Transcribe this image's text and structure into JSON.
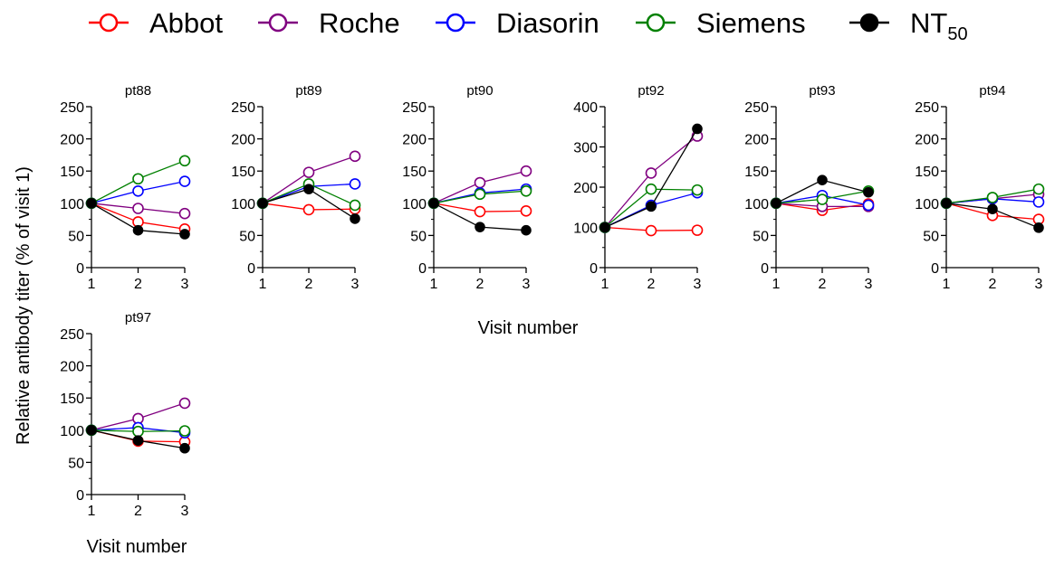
{
  "legend": [
    {
      "label": "Abbot",
      "sub": "",
      "color": "#ff0000",
      "marker": "open-circle"
    },
    {
      "label": "Roche",
      "sub": "",
      "color": "#800080",
      "marker": "open-circle"
    },
    {
      "label": "Diasorin",
      "sub": "",
      "color": "#0000ff",
      "marker": "open-circle"
    },
    {
      "label": "Siemens",
      "sub": "",
      "color": "#008000",
      "marker": "open-circle"
    },
    {
      "label": "NT",
      "sub": "50",
      "color": "#000000",
      "marker": "filled-circle"
    }
  ],
  "ylabel": "Relative antibody titer (% of visit 1)",
  "xlabel_row1": "Visit number",
  "xlabel_row2": "Visit number",
  "chart_data": [
    {
      "type": "line",
      "title": "pt88",
      "x": [
        1,
        2,
        3
      ],
      "ylim": [
        0,
        250
      ],
      "yticks": [
        0,
        50,
        100,
        150,
        200,
        250
      ],
      "series": [
        {
          "name": "Abbot",
          "values": [
            100,
            71,
            60
          ]
        },
        {
          "name": "Roche",
          "values": [
            100,
            92,
            84
          ]
        },
        {
          "name": "Diasorin",
          "values": [
            100,
            119,
            134
          ]
        },
        {
          "name": "Siemens",
          "values": [
            100,
            138,
            166
          ]
        },
        {
          "name": "NT50",
          "values": [
            100,
            58,
            52
          ]
        }
      ]
    },
    {
      "type": "line",
      "title": "pt89",
      "x": [
        1,
        2,
        3
      ],
      "ylim": [
        0,
        250
      ],
      "yticks": [
        0,
        50,
        100,
        150,
        200,
        250
      ],
      "series": [
        {
          "name": "Abbot",
          "values": [
            100,
            90,
            91
          ]
        },
        {
          "name": "Roche",
          "values": [
            100,
            148,
            173
          ]
        },
        {
          "name": "Diasorin",
          "values": [
            100,
            126,
            130
          ]
        },
        {
          "name": "Siemens",
          "values": [
            100,
            130,
            97
          ]
        },
        {
          "name": "NT50",
          "values": [
            100,
            122,
            76
          ]
        }
      ]
    },
    {
      "type": "line",
      "title": "pt90",
      "x": [
        1,
        2,
        3
      ],
      "ylim": [
        0,
        250
      ],
      "yticks": [
        0,
        50,
        100,
        150,
        200,
        250
      ],
      "series": [
        {
          "name": "Abbot",
          "values": [
            100,
            87,
            88
          ]
        },
        {
          "name": "Roche",
          "values": [
            100,
            132,
            150
          ]
        },
        {
          "name": "Diasorin",
          "values": [
            100,
            116,
            122
          ]
        },
        {
          "name": "Siemens",
          "values": [
            100,
            114,
            119
          ]
        },
        {
          "name": "NT50",
          "values": [
            100,
            63,
            58
          ]
        }
      ]
    },
    {
      "type": "line",
      "title": "pt92",
      "x": [
        1,
        2,
        3
      ],
      "ylim": [
        0,
        400
      ],
      "yticks": [
        0,
        100,
        200,
        300,
        400
      ],
      "series": [
        {
          "name": "Abbot",
          "values": [
            100,
            92,
            93
          ]
        },
        {
          "name": "Roche",
          "values": [
            100,
            235,
            327
          ]
        },
        {
          "name": "Diasorin",
          "values": [
            100,
            155,
            186
          ]
        },
        {
          "name": "Siemens",
          "values": [
            100,
            195,
            193
          ]
        },
        {
          "name": "NT50",
          "values": [
            100,
            152,
            345
          ]
        }
      ]
    },
    {
      "type": "line",
      "title": "pt93",
      "x": [
        1,
        2,
        3
      ],
      "ylim": [
        0,
        250
      ],
      "yticks": [
        0,
        50,
        100,
        150,
        200,
        250
      ],
      "series": [
        {
          "name": "Abbot",
          "values": [
            100,
            89,
            99
          ]
        },
        {
          "name": "Roche",
          "values": [
            100,
            95,
            95
          ]
        },
        {
          "name": "Diasorin",
          "values": [
            100,
            112,
            97
          ]
        },
        {
          "name": "Siemens",
          "values": [
            100,
            106,
            119
          ]
        },
        {
          "name": "NT50",
          "values": [
            100,
            136,
            117
          ]
        }
      ]
    },
    {
      "type": "line",
      "title": "pt94",
      "x": [
        1,
        2,
        3
      ],
      "ylim": [
        0,
        250
      ],
      "yticks": [
        0,
        50,
        100,
        150,
        200,
        250
      ],
      "series": [
        {
          "name": "Abbot",
          "values": [
            100,
            81,
            75
          ]
        },
        {
          "name": "Roche",
          "values": [
            100,
            107,
            114
          ]
        },
        {
          "name": "Diasorin",
          "values": [
            100,
            107,
            102
          ]
        },
        {
          "name": "Siemens",
          "values": [
            100,
            109,
            122
          ]
        },
        {
          "name": "NT50",
          "values": [
            100,
            91,
            62
          ]
        }
      ]
    },
    {
      "type": "line",
      "title": "pt97",
      "x": [
        1,
        2,
        3
      ],
      "ylim": [
        0,
        250
      ],
      "yticks": [
        0,
        50,
        100,
        150,
        200,
        250
      ],
      "series": [
        {
          "name": "Abbot",
          "values": [
            100,
            83,
            82
          ]
        },
        {
          "name": "Roche",
          "values": [
            100,
            118,
            142
          ]
        },
        {
          "name": "Diasorin",
          "values": [
            100,
            104,
            96
          ]
        },
        {
          "name": "Siemens",
          "values": [
            100,
            98,
            99
          ]
        },
        {
          "name": "NT50",
          "values": [
            100,
            84,
            72
          ]
        }
      ]
    }
  ]
}
